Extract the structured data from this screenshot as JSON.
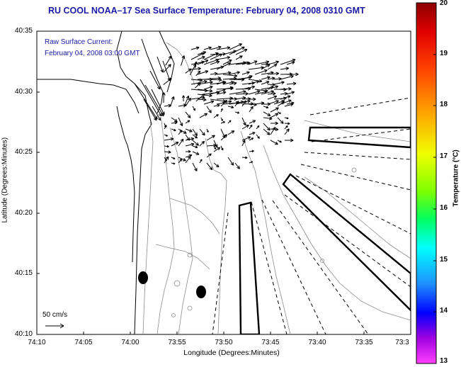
{
  "title": "RU COOL  NOAA–17  Sea Surface Temperature:  February 04, 2008 0310 GMT",
  "legend": {
    "line1": "Raw Surface Current:",
    "line2": "February 04, 2008 03:00 GMT"
  },
  "axes": {
    "xlabel": "Longitude (Degrees:Minutes)",
    "ylabel": "Latitude (Degrees:Minutes)",
    "xticks": [
      "74:10",
      "74:05",
      "74:00",
      "73:55",
      "73:50",
      "73:45",
      "73:40",
      "73:35",
      "73:3"
    ],
    "yticks": [
      "40:35",
      "40:30",
      "40:25",
      "40:20",
      "40:15",
      "40:10"
    ]
  },
  "colorbar": {
    "label": "Temperature (°C)",
    "ticks": [
      "20",
      "19",
      "18",
      "17",
      "16",
      "15",
      "14",
      "13"
    ],
    "range": [
      13,
      20
    ],
    "colors": [
      "#8b0000",
      "#ff0000",
      "#ff8c00",
      "#ffff00",
      "#7fff00",
      "#00ff7f",
      "#00ffff",
      "#1e90ff",
      "#0000ff",
      "#9400d3",
      "#ff00ff"
    ]
  },
  "scale": {
    "label": "50 cm/s"
  }
}
